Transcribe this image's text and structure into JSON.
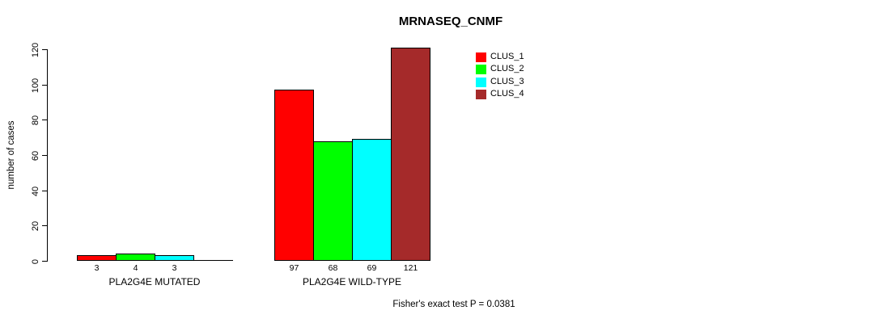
{
  "title": "MRNASEQ_CNMF",
  "caption": "Fisher's exact test P = 0.0381",
  "chart_data": {
    "type": "bar",
    "title": "MRNASEQ_CNMF",
    "xlabel": "",
    "ylabel": "number of cases",
    "ylim": [
      0,
      120
    ],
    "yticks": [
      0,
      20,
      40,
      60,
      80,
      100,
      120
    ],
    "grid": false,
    "legend_position": "top-right",
    "categories": [
      "PLA2G4E MUTATED",
      "PLA2G4E WILD-TYPE"
    ],
    "series": [
      {
        "name": "CLUS_1",
        "color": "#ff0000",
        "values": [
          3,
          97
        ]
      },
      {
        "name": "CLUS_2",
        "color": "#00ff00",
        "values": [
          4,
          68
        ]
      },
      {
        "name": "CLUS_3",
        "color": "#00ffff",
        "values": [
          3,
          69
        ]
      },
      {
        "name": "CLUS_4",
        "color": "#a52a2a",
        "values": [
          0,
          121
        ]
      }
    ],
    "bar_labels": [
      [
        "3",
        "4",
        "3",
        ""
      ],
      [
        "97",
        "68",
        "69",
        "121"
      ]
    ],
    "annotation": "Fisher's exact test P = 0.0381"
  }
}
